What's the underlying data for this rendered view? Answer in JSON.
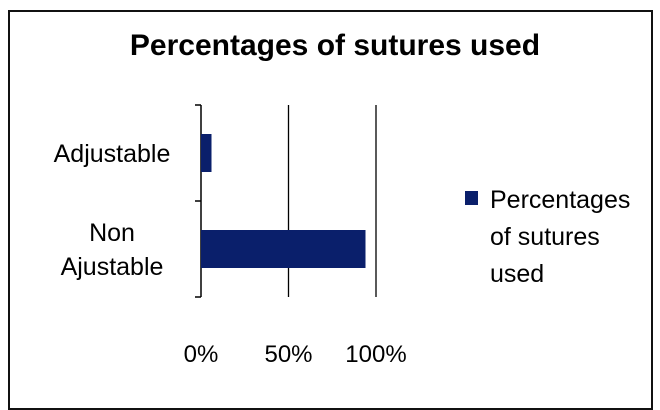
{
  "chart_data": {
    "type": "bar",
    "orientation": "horizontal",
    "title": "Percentages of sutures used",
    "categories": [
      [
        "Adjustable"
      ],
      [
        "Non",
        "Ajustable"
      ]
    ],
    "series": [
      {
        "name": [
          "Percentages",
          "of sutures",
          "used"
        ],
        "values": [
          6,
          94
        ],
        "color": "#0a1f6b"
      }
    ],
    "xlim": [
      0,
      100
    ],
    "xticks": [
      "0%",
      "50%",
      "100%"
    ],
    "grid": true,
    "legend_position": "right"
  }
}
